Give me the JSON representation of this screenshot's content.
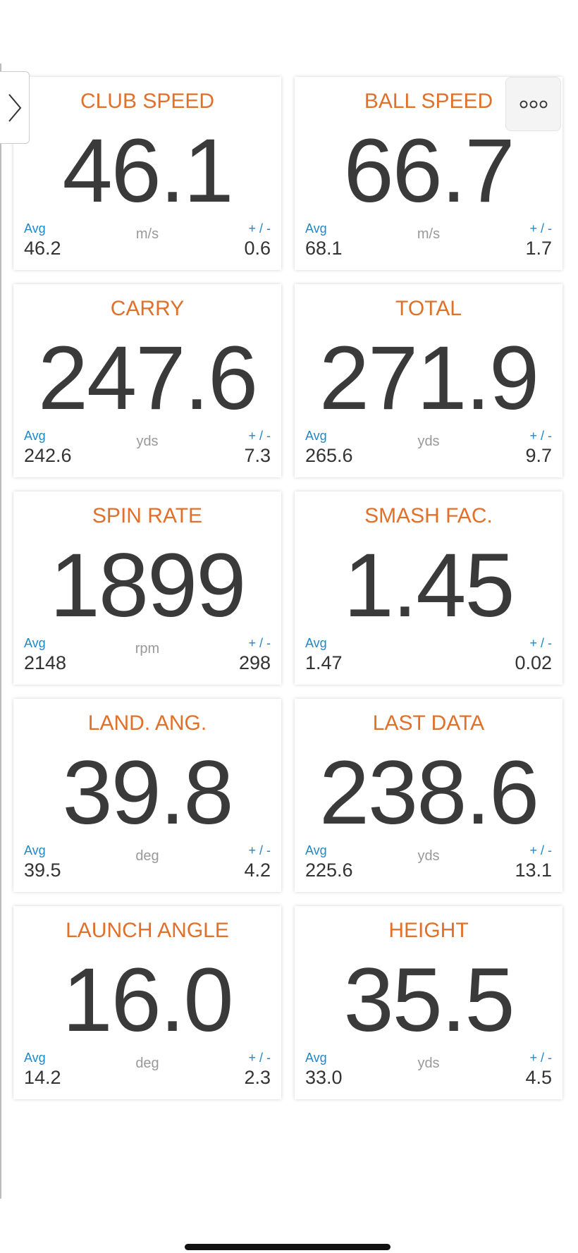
{
  "labels": {
    "avg": "Avg",
    "pm": "+ / -"
  },
  "colors": {
    "title": "#e0702a",
    "label": "#1e88c8",
    "value": "#3a3a3a"
  },
  "cards": [
    {
      "title": "CLUB SPEED",
      "value": "46.1",
      "unit": "m/s",
      "avg": "46.2",
      "pm": "0.6"
    },
    {
      "title": "BALL SPEED",
      "value": "66.7",
      "unit": "m/s",
      "avg": "68.1",
      "pm": "1.7"
    },
    {
      "title": "CARRY",
      "value": "247.6",
      "unit": "yds",
      "avg": "242.6",
      "pm": "7.3"
    },
    {
      "title": "TOTAL",
      "value": "271.9",
      "unit": "yds",
      "avg": "265.6",
      "pm": "9.7"
    },
    {
      "title": "SPIN RATE",
      "value": "1899",
      "unit": "rpm",
      "avg": "2148",
      "pm": "298"
    },
    {
      "title": "SMASH FAC.",
      "value": "1.45",
      "unit": "",
      "avg": "1.47",
      "pm": "0.02"
    },
    {
      "title": "LAND. ANG.",
      "value": "39.8",
      "unit": "deg",
      "avg": "39.5",
      "pm": "4.2"
    },
    {
      "title": "LAST DATA",
      "value": "238.6",
      "unit": "yds",
      "avg": "225.6",
      "pm": "13.1"
    },
    {
      "title": "LAUNCH ANGLE",
      "value": "16.0",
      "unit": "deg",
      "avg": "14.2",
      "pm": "2.3"
    },
    {
      "title": "HEIGHT",
      "value": "35.5",
      "unit": "yds",
      "avg": "33.0",
      "pm": "4.5"
    }
  ]
}
